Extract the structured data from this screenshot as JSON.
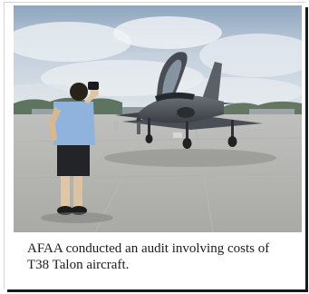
{
  "figure": {
    "photo_alt": "Person photographing a T-38 Talon jet aircraft on an airfield ramp",
    "caption": "AFAA conducted an audit involving costs of T38 Talon aircraft."
  }
}
